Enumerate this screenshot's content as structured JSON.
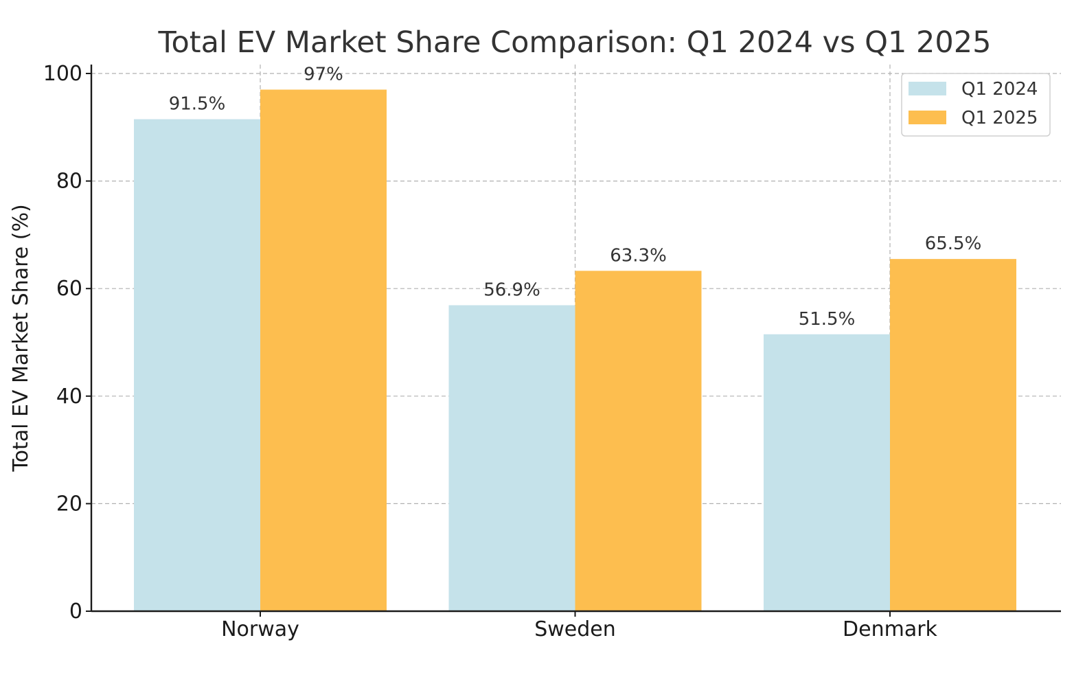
{
  "chart_data": {
    "type": "bar",
    "title": "Total EV Market Share Comparison: Q1 2024 vs Q1 2025",
    "xlabel": "",
    "ylabel": "Total EV Market Share (%)",
    "categories": [
      "Norway",
      "Sweden",
      "Denmark"
    ],
    "series": [
      {
        "name": "Q1 2024",
        "color": "#c5e2ea",
        "values": [
          91.5,
          56.9,
          51.5
        ],
        "labels": [
          "91.5%",
          "56.9%",
          "51.5%"
        ]
      },
      {
        "name": "Q1 2025",
        "color": "#fdbe4f",
        "values": [
          97,
          63.3,
          65.5
        ],
        "labels": [
          "97%",
          "63.3%",
          "65.5%"
        ]
      }
    ],
    "ylim": [
      0,
      100
    ],
    "yticks": [
      0,
      20,
      40,
      60,
      80,
      100
    ],
    "ytick_labels": [
      "0",
      "20",
      "40",
      "60",
      "80",
      "100"
    ],
    "grid": true,
    "legend_position": "top-right"
  }
}
